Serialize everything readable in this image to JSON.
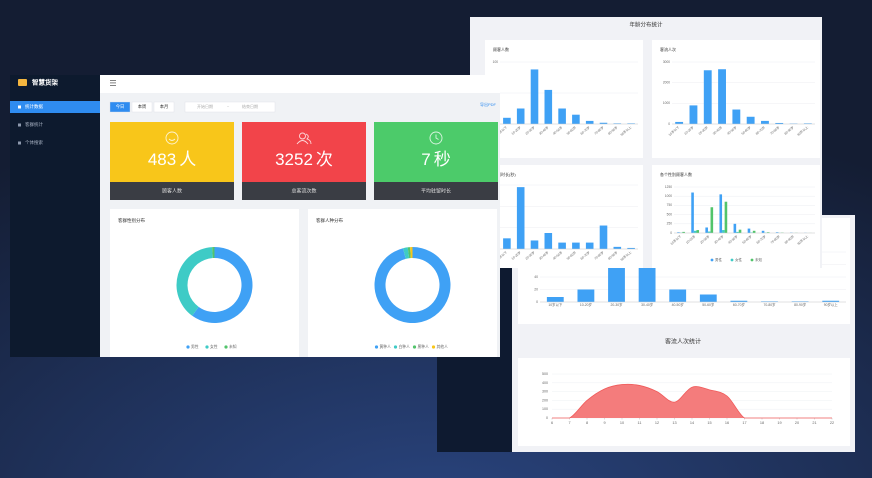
{
  "left_app": {
    "logo": "智慧货架",
    "menu": [
      "统计数据",
      "客群统计",
      "个体搜索"
    ],
    "tabs": [
      "今日",
      "本周",
      "本月"
    ],
    "date_start": "开始日期",
    "date_sep": "~",
    "date_end": "结束日期",
    "export": "导出PDF",
    "cards": [
      {
        "value": 483,
        "unit": "人",
        "label": "顾客人数",
        "color": "#f8c61a"
      },
      {
        "value": 3252,
        "unit": "次",
        "label": "总客流次数",
        "color": "#f2444a"
      },
      {
        "value": 7,
        "unit": "秒",
        "label": "平均驻留时长",
        "color": "#4ccb6a"
      }
    ],
    "donuts": [
      {
        "type": "donut",
        "title": "客群性别分布",
        "categories": [
          "男性",
          "女性",
          "未知"
        ],
        "values": [
          60,
          39,
          1
        ],
        "colors": [
          "#3fa1f5",
          "#3ecbc6",
          "#52c46b"
        ]
      },
      {
        "type": "donut",
        "title": "客群人种分布",
        "categories": [
          "黄种人",
          "白种人",
          "黑种人",
          "其他人"
        ],
        "values": [
          96,
          2,
          1,
          1
        ],
        "colors": [
          "#3fa1f5",
          "#3ecbc6",
          "#52c46b",
          "#f8c61a"
        ]
      }
    ]
  },
  "age_stats": {
    "title": "年龄分布统计",
    "categories": [
      "10岁以下",
      "10-20岁",
      "20-30岁",
      "30-40岁",
      "40-50岁",
      "50-60岁",
      "60-70岁",
      "70-80岁",
      "80-90岁",
      "90岁以上"
    ],
    "charts": [
      {
        "type": "bar",
        "title": "顾客人数",
        "ylim": [
          0,
          100
        ],
        "yticks": [
          0,
          50,
          100
        ],
        "color": "#3fa1f5",
        "values": [
          10,
          25,
          88,
          55,
          25,
          15,
          5,
          2,
          1,
          1
        ]
      },
      {
        "type": "bar",
        "title": "客流人次",
        "ylim": [
          0,
          3000
        ],
        "yticks": [
          0,
          1000,
          2000,
          3000
        ],
        "color": "#3fa1f5",
        "values": [
          100,
          900,
          2600,
          2650,
          700,
          350,
          150,
          50,
          20,
          30
        ]
      },
      {
        "type": "bar",
        "title": "驻留时长(秒)",
        "ylim": [
          0,
          60
        ],
        "yticks": [
          0,
          20,
          40,
          60
        ],
        "color": "#3fa1f5",
        "values": [
          10,
          58,
          8,
          15,
          6,
          6,
          6,
          22,
          2,
          1
        ]
      },
      {
        "type": "bar",
        "title": "各个性别顾客人数",
        "ylim": [
          0,
          1250
        ],
        "yticks": [
          0,
          250,
          500,
          750,
          1000,
          1250
        ],
        "series": [
          {
            "name": "男性",
            "color": "#3fa1f5",
            "values": [
              20,
              1100,
              150,
              1050,
              250,
              120,
              60,
              20,
              10,
              5
            ]
          },
          {
            "name": "女性",
            "color": "#3ecbc6",
            "values": [
              10,
              60,
              40,
              80,
              30,
              15,
              8,
              5,
              2,
              1
            ]
          },
          {
            "name": "未知",
            "color": "#52c46b",
            "values": [
              30,
              80,
              700,
              850,
              90,
              60,
              20,
              10,
              5,
              2
            ]
          }
        ]
      }
    ]
  },
  "visits": {
    "bar": {
      "type": "bar",
      "ylim": [
        0,
        80
      ],
      "yticks": [
        0,
        20,
        40,
        60,
        80
      ],
      "color": "#3fa1f5",
      "values": [
        8,
        20,
        70,
        65,
        20,
        12,
        2,
        1,
        1,
        2
      ]
    },
    "title": "客流人次统计",
    "area": {
      "type": "area",
      "color": "#f47c7c",
      "xlim": [
        6,
        22
      ],
      "xticks": [
        6,
        7,
        8,
        9,
        10,
        11,
        12,
        13,
        14,
        15,
        16,
        17,
        18,
        19,
        20,
        21,
        22
      ],
      "ylim": [
        0,
        500
      ],
      "yticks": [
        0,
        100,
        200,
        300,
        400,
        500
      ],
      "x": [
        6,
        7,
        8,
        9,
        10,
        11,
        12,
        13,
        14,
        15,
        16,
        17,
        18,
        19,
        20,
        21,
        22
      ],
      "values": [
        0,
        0,
        200,
        330,
        380,
        370,
        300,
        180,
        350,
        320,
        250,
        0,
        0,
        0,
        0,
        0,
        0
      ]
    }
  }
}
